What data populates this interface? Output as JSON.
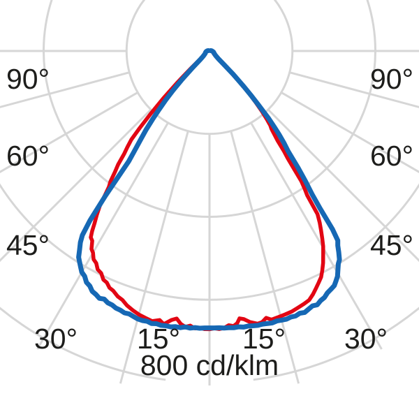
{
  "chart_data": {
    "type": "polar",
    "subtype": "luminous-intensity-distribution",
    "unit_label": "800 cd/klm",
    "unit": "cd/klm",
    "ring_max": 800,
    "ring_values": [
      200,
      400,
      600,
      800
    ],
    "radial_lines_deg": [
      0,
      15,
      30,
      45,
      60,
      75,
      90
    ],
    "angle_labels": {
      "left_90": "90°",
      "left_60": "60°",
      "left_45": "45°",
      "left_30": "30°",
      "left_15": "15°",
      "right_15": "15°",
      "right_30": "30°",
      "right_45": "45°",
      "right_60": "60°",
      "right_90": "90°"
    },
    "colors": {
      "curve_blue": "#1668b4",
      "curve_red": "#e20613",
      "grid": "#d6d6d6",
      "text": "#1d1d1b"
    },
    "series": [
      {
        "name": "curve-red",
        "color": "#e20613",
        "stroke_width": 5.5,
        "left": [
          [
            105,
            2
          ],
          [
            100,
            3
          ],
          [
            95,
            4
          ],
          [
            90,
            5
          ],
          [
            85,
            6
          ],
          [
            80,
            7
          ],
          [
            75,
            8
          ],
          [
            70,
            9
          ],
          [
            65,
            10
          ],
          [
            60,
            12
          ],
          [
            56,
            15
          ],
          [
            52,
            20
          ],
          [
            49,
            30
          ],
          [
            47,
            60
          ],
          [
            45.5,
            110
          ],
          [
            44.3,
            160
          ],
          [
            43.2,
            205
          ],
          [
            42.2,
            250
          ],
          [
            41.4,
            285
          ],
          [
            40.5,
            305
          ],
          [
            39.7,
            322
          ],
          [
            38.8,
            352
          ],
          [
            38,
            370
          ],
          [
            37.2,
            395
          ],
          [
            36.5,
            408
          ],
          [
            35.9,
            431
          ],
          [
            35.3,
            458
          ],
          [
            34.5,
            480
          ],
          [
            33.7,
            500
          ],
          [
            33.1,
            518
          ],
          [
            32.5,
            533
          ],
          [
            31.7,
            538
          ],
          [
            30.8,
            556
          ],
          [
            30,
            562
          ],
          [
            29.1,
            575
          ],
          [
            28.1,
            580
          ],
          [
            27.1,
            592
          ],
          [
            26,
            596
          ],
          [
            24.9,
            608
          ],
          [
            23.9,
            611
          ],
          [
            22.9,
            620
          ],
          [
            21.9,
            623
          ],
          [
            20.5,
            632
          ],
          [
            19.3,
            636
          ],
          [
            18,
            645
          ],
          [
            16.5,
            652
          ],
          [
            15,
            658
          ],
          [
            13.5,
            662
          ],
          [
            12,
            666
          ],
          [
            10.5,
            660
          ],
          [
            9.5,
            668
          ],
          [
            8,
            655
          ],
          [
            7,
            650
          ],
          [
            6,
            662
          ],
          [
            5,
            668
          ],
          [
            4,
            664
          ],
          [
            3,
            670
          ],
          [
            2,
            668
          ],
          [
            1,
            671
          ],
          [
            0,
            671
          ]
        ],
        "right": [
          [
            105,
            2
          ],
          [
            100,
            3
          ],
          [
            95,
            4
          ],
          [
            90,
            5
          ],
          [
            85,
            6
          ],
          [
            80,
            7
          ],
          [
            75,
            8
          ],
          [
            70,
            9
          ],
          [
            65,
            10
          ],
          [
            60,
            11
          ],
          [
            56,
            13
          ],
          [
            52,
            16
          ],
          [
            49,
            22
          ],
          [
            47,
            35
          ],
          [
            45.5,
            65
          ],
          [
            44,
            105
          ],
          [
            43,
            138
          ],
          [
            42,
            165
          ],
          [
            41,
            192
          ],
          [
            40,
            215
          ],
          [
            39.2,
            232
          ],
          [
            38.5,
            240
          ],
          [
            37.8,
            256
          ],
          [
            37.2,
            272
          ],
          [
            36.6,
            302
          ],
          [
            36.1,
            320
          ],
          [
            35.7,
            345
          ],
          [
            35.2,
            384
          ],
          [
            34.6,
            405
          ],
          [
            34.1,
            420
          ],
          [
            33.5,
            472
          ],
          [
            32.7,
            492
          ],
          [
            31.9,
            509
          ],
          [
            31,
            528
          ],
          [
            30.2,
            545
          ],
          [
            29.2,
            562
          ],
          [
            28.2,
            580
          ],
          [
            27.2,
            595
          ],
          [
            26.3,
            608
          ],
          [
            25.2,
            618
          ],
          [
            24.2,
            627
          ],
          [
            23,
            638
          ],
          [
            21.8,
            647
          ],
          [
            20.5,
            651
          ],
          [
            19,
            655
          ],
          [
            17.5,
            659
          ],
          [
            16,
            661
          ],
          [
            14.5,
            663
          ],
          [
            13,
            665
          ],
          [
            12,
            658
          ],
          [
            11,
            666
          ],
          [
            10,
            668
          ],
          [
            8.5,
            661
          ],
          [
            7.3,
            652
          ],
          [
            6.4,
            649
          ],
          [
            5.8,
            660
          ],
          [
            5,
            666
          ],
          [
            4,
            663
          ],
          [
            3,
            669
          ],
          [
            2,
            671
          ],
          [
            1,
            669
          ],
          [
            0,
            671
          ]
        ]
      },
      {
        "name": "curve-blue",
        "color": "#1668b4",
        "stroke_width": 7,
        "left": [
          [
            105,
            3
          ],
          [
            100,
            4
          ],
          [
            95,
            5
          ],
          [
            90,
            6
          ],
          [
            85,
            7
          ],
          [
            80,
            8
          ],
          [
            75,
            9
          ],
          [
            70,
            10
          ],
          [
            65,
            11
          ],
          [
            60,
            12
          ],
          [
            56,
            14
          ],
          [
            52,
            17
          ],
          [
            49,
            22
          ],
          [
            47,
            30
          ],
          [
            45.5,
            55
          ],
          [
            44,
            95
          ],
          [
            42.8,
            130
          ],
          [
            41.8,
            158
          ],
          [
            40.8,
            185
          ],
          [
            39.8,
            215
          ],
          [
            38.8,
            245
          ],
          [
            37.8,
            272
          ],
          [
            36.8,
            305
          ],
          [
            36.2,
            330
          ],
          [
            35.7,
            430
          ],
          [
            35.2,
            500
          ],
          [
            34.6,
            540
          ],
          [
            34,
            557
          ],
          [
            33.2,
            572
          ],
          [
            32.4,
            589
          ],
          [
            31.6,
            598
          ],
          [
            30.8,
            607
          ],
          [
            30,
            616
          ],
          [
            29,
            621
          ],
          [
            28,
            632
          ],
          [
            27,
            636
          ],
          [
            26,
            645
          ],
          [
            25,
            648
          ],
          [
            24,
            653
          ],
          [
            23,
            650
          ],
          [
            22,
            655
          ],
          [
            21,
            656
          ],
          [
            20,
            660
          ],
          [
            19,
            661
          ],
          [
            18,
            664
          ],
          [
            17,
            663
          ],
          [
            16,
            666
          ],
          [
            15,
            669
          ],
          [
            14,
            670
          ],
          [
            13,
            669
          ],
          [
            12,
            672
          ],
          [
            11,
            670
          ],
          [
            10,
            672
          ],
          [
            9,
            671
          ],
          [
            8,
            672
          ],
          [
            7,
            670
          ],
          [
            6,
            671
          ],
          [
            5,
            668
          ],
          [
            4,
            670
          ],
          [
            3,
            668
          ],
          [
            2,
            669
          ],
          [
            1,
            668
          ],
          [
            0,
            668
          ]
        ],
        "right": [
          [
            105,
            3
          ],
          [
            100,
            4
          ],
          [
            95,
            5
          ],
          [
            90,
            6
          ],
          [
            85,
            7
          ],
          [
            80,
            8
          ],
          [
            75,
            10
          ],
          [
            70,
            11
          ],
          [
            65,
            12
          ],
          [
            60,
            14
          ],
          [
            56,
            16
          ],
          [
            52,
            20
          ],
          [
            49,
            28
          ],
          [
            47,
            45
          ],
          [
            45.5,
            80
          ],
          [
            44,
            120
          ],
          [
            43,
            150
          ],
          [
            42.2,
            176
          ],
          [
            41.2,
            217
          ],
          [
            40.5,
            240
          ],
          [
            39.8,
            262
          ],
          [
            39,
            285
          ],
          [
            38.1,
            308
          ],
          [
            37.2,
            352
          ],
          [
            36.4,
            390
          ],
          [
            35.6,
            425
          ],
          [
            35.1,
            462
          ],
          [
            34.6,
            523
          ],
          [
            34.1,
            552
          ],
          [
            33.4,
            562
          ],
          [
            32.7,
            577
          ],
          [
            31.9,
            593
          ],
          [
            31.2,
            600
          ],
          [
            30.4,
            612
          ],
          [
            29.6,
            625
          ],
          [
            28.8,
            633
          ],
          [
            28,
            641
          ],
          [
            27,
            645
          ],
          [
            26,
            649
          ],
          [
            25,
            656
          ],
          [
            24,
            659
          ],
          [
            23,
            665
          ],
          [
            22,
            663
          ],
          [
            21,
            667
          ],
          [
            20,
            671
          ],
          [
            19,
            669
          ],
          [
            18,
            672
          ],
          [
            17,
            671
          ],
          [
            16,
            673
          ],
          [
            15,
            672
          ],
          [
            14,
            671
          ],
          [
            13,
            673
          ],
          [
            12,
            672
          ],
          [
            11,
            671
          ],
          [
            10,
            672
          ],
          [
            9,
            671
          ],
          [
            8,
            670
          ],
          [
            7,
            671
          ],
          [
            6,
            669
          ],
          [
            5,
            670
          ],
          [
            4,
            669
          ],
          [
            3,
            669
          ],
          [
            2,
            668
          ],
          [
            1,
            668
          ],
          [
            0,
            668
          ]
        ]
      }
    ]
  }
}
